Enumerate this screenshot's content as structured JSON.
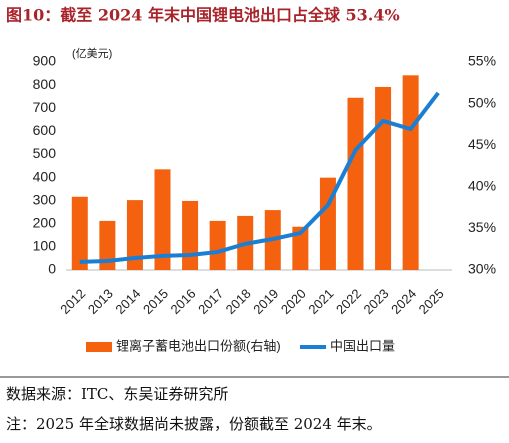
{
  "chart_data": {
    "type": "bar-line",
    "title": "图10：截至 2024 年末中国锂电池出口占全球 53.4%",
    "y_unit": "(亿美元)",
    "categories": [
      "2012",
      "2013",
      "2014",
      "2015",
      "2016",
      "2017",
      "2018",
      "2019",
      "2020",
      "2021",
      "2022",
      "2023",
      "2024",
      "2025"
    ],
    "series": [
      {
        "name": "锂离子蓄电池出口份额(右轴)",
        "type": "bar",
        "axis": "y2",
        "color": "#f4620f",
        "values": [
          38.8,
          35.9,
          38.4,
          42.1,
          38.3,
          35.9,
          36.5,
          37.2,
          35.2,
          41.1,
          50.7,
          52.0,
          53.4,
          null
        ]
      },
      {
        "name": "中国出口量",
        "type": "line",
        "color": "#1a7fd4",
        "values": [
          35,
          39,
          52,
          61,
          65,
          78,
          113,
          134,
          160,
          281,
          519,
          645,
          610,
          766
        ]
      }
    ],
    "ylim": [
      0,
      900
    ],
    "yticks": [
      0,
      100,
      200,
      300,
      400,
      500,
      600,
      700,
      800,
      900
    ],
    "y2lim": [
      30,
      55
    ],
    "y2ticks": [
      {
        "value": 30,
        "label": "30%"
      },
      {
        "value": 35,
        "label": "35%"
      },
      {
        "value": 40,
        "label": "40%"
      },
      {
        "value": 45,
        "label": "45%"
      },
      {
        "value": 50,
        "label": "50%"
      },
      {
        "value": 55,
        "label": "55%"
      }
    ],
    "legend": "bottom",
    "source": "数据来源：ITC、东吴证券研究所",
    "note": "注：2025 年全球数据尚未披露，份额截至 2024 年末。"
  }
}
